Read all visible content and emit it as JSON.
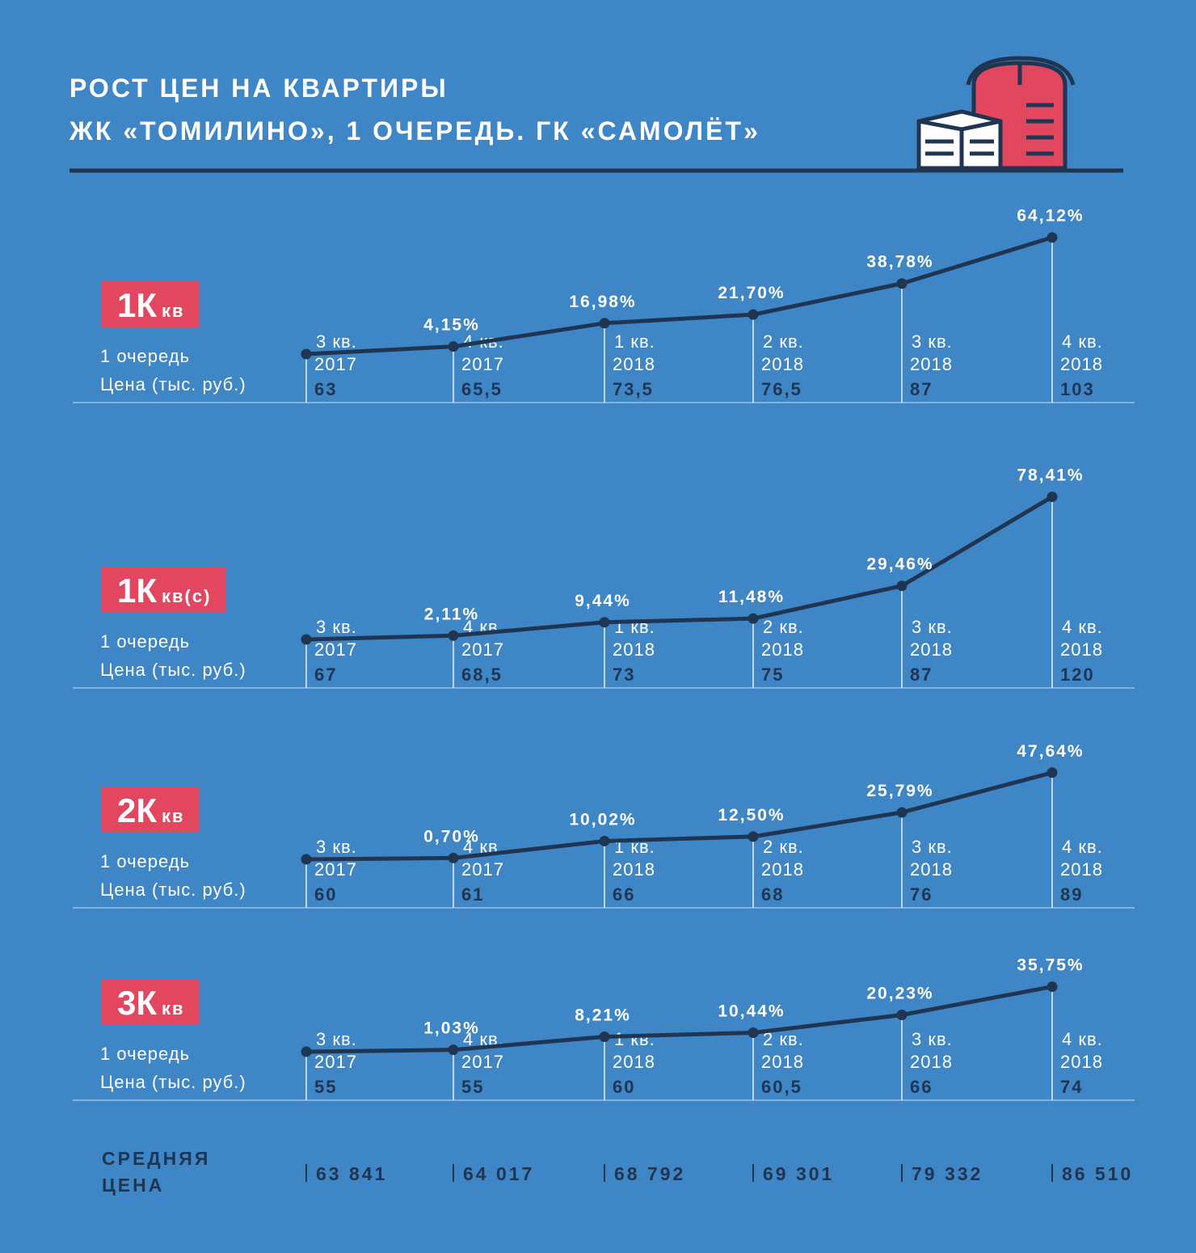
{
  "header": {
    "title_lines": [
      "РОСТ ЦЕН НА КВАРТИРЫ",
      "ЖК «ТОМИЛИНО», 1 ОЧЕРЕДЬ. ГК «САМОЛЁТ»"
    ]
  },
  "chart_data": [
    {
      "type": "line",
      "badge": "1К",
      "badge_sub": "кв",
      "queue": "1 очередь",
      "price_label": "Цена (тыс. руб.)",
      "categories": [
        [
          "3 кв.",
          "2017"
        ],
        [
          "4 кв.",
          "2017"
        ],
        [
          "1 кв.",
          "2018"
        ],
        [
          "2 кв.",
          "2018"
        ],
        [
          "3 кв.",
          "2018"
        ],
        [
          "4 кв.",
          "2018"
        ]
      ],
      "values": [
        0,
        4.15,
        16.98,
        21.7,
        38.78,
        64.12
      ],
      "value_labels": [
        null,
        "4,15%",
        "16,98%",
        "21,70%",
        "38,78%",
        "64,12%"
      ],
      "prices": [
        63,
        65.5,
        73.5,
        76.5,
        87,
        103
      ],
      "price_labels": [
        "63",
        "65,5",
        "73,5",
        "76,5",
        "87",
        "103"
      ],
      "ylim": [
        0,
        80
      ],
      "color": "#1f3552"
    },
    {
      "type": "line",
      "badge": "1К",
      "badge_sub": "кв(с)",
      "queue": "1 очередь",
      "price_label": "Цена (тыс. руб.)",
      "categories": [
        [
          "3 кв.",
          "2017"
        ],
        [
          "4 кв.",
          "2017"
        ],
        [
          "1 кв.",
          "2018"
        ],
        [
          "2 кв.",
          "2018"
        ],
        [
          "3 кв.",
          "2018"
        ],
        [
          "4 кв.",
          "2018"
        ]
      ],
      "values": [
        0,
        2.11,
        9.44,
        11.48,
        29.46,
        78.41
      ],
      "value_labels": [
        null,
        "2,11%",
        "9,44%",
        "11,48%",
        "29,46%",
        "78,41%"
      ],
      "prices": [
        67,
        68.5,
        73,
        75,
        87,
        120
      ],
      "price_labels": [
        "67",
        "68,5",
        "73",
        "75",
        "87",
        "120"
      ],
      "ylim": [
        0,
        80
      ],
      "color": "#1f3552"
    },
    {
      "type": "line",
      "badge": "2К",
      "badge_sub": "кв",
      "queue": "1 очередь",
      "price_label": "Цена (тыс. руб.)",
      "categories": [
        [
          "3 кв.",
          "2017"
        ],
        [
          "4 кв.",
          "2017"
        ],
        [
          "1 кв.",
          "2018"
        ],
        [
          "2 кв.",
          "2018"
        ],
        [
          "3 кв.",
          "2018"
        ],
        [
          "4 кв.",
          "2018"
        ]
      ],
      "values": [
        0,
        0.7,
        10.02,
        12.5,
        25.79,
        47.64
      ],
      "value_labels": [
        null,
        "0,70%",
        "10,02%",
        "12,50%",
        "25,79%",
        "47,64%"
      ],
      "prices": [
        60,
        61,
        66,
        68,
        76,
        89
      ],
      "price_labels": [
        "60",
        "61",
        "66",
        "68",
        "76",
        "89"
      ],
      "ylim": [
        0,
        80
      ],
      "color": "#1f3552"
    },
    {
      "type": "line",
      "badge": "3К",
      "badge_sub": "кв",
      "queue": "1 очередь",
      "price_label": "Цена (тыс. руб.)",
      "categories": [
        [
          "3 кв.",
          "2017"
        ],
        [
          "4 кв.",
          "2017"
        ],
        [
          "1 кв.",
          "2018"
        ],
        [
          "2 кв.",
          "2018"
        ],
        [
          "3 кв.",
          "2018"
        ],
        [
          "4 кв.",
          "2018"
        ]
      ],
      "values": [
        0,
        1.03,
        8.21,
        10.44,
        20.23,
        35.75
      ],
      "value_labels": [
        null,
        "1,03%",
        "8,21%",
        "10,44%",
        "20,23%",
        "35,75%"
      ],
      "prices": [
        55,
        55,
        60,
        60.5,
        66,
        74
      ],
      "price_labels": [
        "55",
        "55",
        "60",
        "60,5",
        "66",
        "74"
      ],
      "ylim": [
        0,
        80
      ],
      "color": "#1f3552"
    }
  ],
  "average": {
    "label_lines": [
      "СРЕДНЯЯ",
      "ЦЕНА"
    ],
    "values": [
      63841,
      64017,
      68792,
      69301,
      79332,
      86510
    ],
    "value_labels": [
      "63 841",
      "64 017",
      "68 792",
      "69 301",
      "79 332",
      "86 510"
    ]
  }
}
